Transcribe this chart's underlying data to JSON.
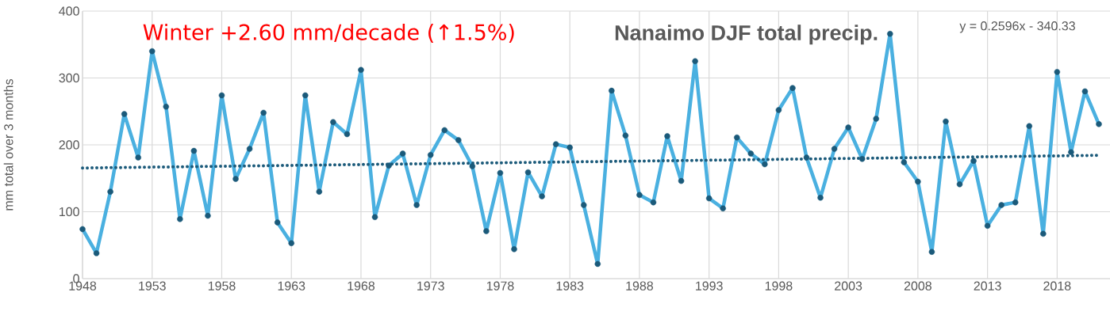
{
  "chart_data": {
    "type": "line",
    "title": "Nanaimo DJF total precip.",
    "ylabel": "mm total over 3 months",
    "annotations": [
      "Winter +2.60 mm/decade (↑1.5%)",
      "y = 0.2596x - 340.33"
    ],
    "x": [
      1948,
      1949,
      1950,
      1951,
      1952,
      1953,
      1954,
      1955,
      1956,
      1957,
      1958,
      1959,
      1960,
      1961,
      1962,
      1963,
      1964,
      1965,
      1966,
      1967,
      1968,
      1969,
      1970,
      1971,
      1972,
      1973,
      1974,
      1975,
      1976,
      1977,
      1978,
      1979,
      1980,
      1981,
      1982,
      1983,
      1984,
      1985,
      1986,
      1987,
      1988,
      1989,
      1990,
      1991,
      1992,
      1993,
      1994,
      1995,
      1996,
      1997,
      1998,
      1999,
      2000,
      2001,
      2002,
      2003,
      2004,
      2005,
      2006,
      2007,
      2008,
      2009,
      2010,
      2011,
      2012,
      2013,
      2014,
      2015,
      2016,
      2017,
      2018,
      2019,
      2020,
      2021
    ],
    "xlim": [
      1948,
      2021.8
    ],
    "xticks": [
      1948,
      1953,
      1958,
      1963,
      1968,
      1973,
      1978,
      1983,
      1988,
      1993,
      1998,
      2003,
      2008,
      2013,
      2018
    ],
    "ylim": [
      0,
      400
    ],
    "yticks": [
      0,
      100,
      200,
      300,
      400
    ],
    "grid": true,
    "marker": "circle",
    "series": [
      {
        "color": "#4ab0e0",
        "values": [
          74,
          38,
          130,
          246,
          181,
          340,
          257,
          89,
          191,
          94,
          274,
          149,
          194,
          248,
          84,
          53,
          274,
          130,
          234,
          216,
          312,
          92,
          169,
          187,
          110,
          185,
          222,
          207,
          168,
          71,
          158,
          44,
          159,
          123,
          201,
          196,
          110,
          22,
          281,
          214,
          125,
          114,
          213,
          146,
          325,
          120,
          105,
          211,
          187,
          171,
          252,
          285,
          181,
          121,
          194,
          226,
          179,
          239,
          366,
          174,
          145,
          40,
          235,
          141,
          176,
          79,
          110,
          114,
          228,
          67,
          309,
          189,
          280,
          231
        ]
      },
      {
        "type": "line",
        "x": [
          1948,
          2021
        ],
        "values": [
          165.4,
          184.3
        ],
        "color": "#1b5a7a",
        "line_style": "dotted",
        "marker": "none"
      }
    ]
  }
}
